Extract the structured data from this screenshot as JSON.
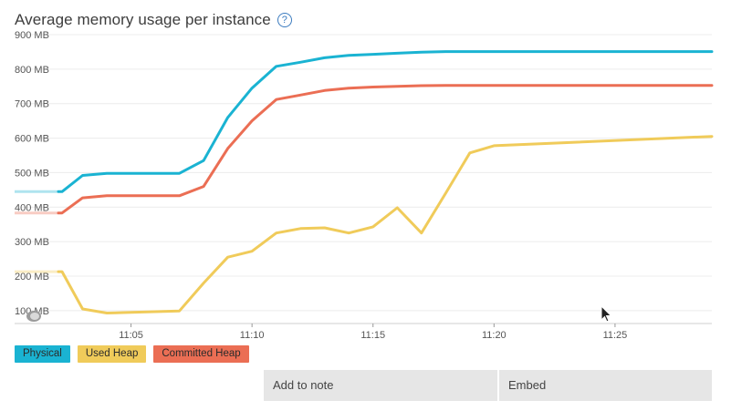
{
  "header": {
    "title": "Average memory usage per instance",
    "help_icon": "question-mark-icon",
    "help_glyph": "?"
  },
  "legend": [
    {
      "label": "Physical",
      "color": "#1ab3d2"
    },
    {
      "label": "Used Heap",
      "color": "#f0cb5a"
    },
    {
      "label": "Committed Heap",
      "color": "#eb6e54"
    }
  ],
  "actions": {
    "add_to_note": "Add to note",
    "embed": "Embed"
  },
  "chart_data": {
    "type": "line",
    "title": "Average memory usage per instance",
    "xlabel": "",
    "ylabel": "",
    "y_unit": "MB",
    "ylim": [
      60,
      900
    ],
    "y_ticks": [
      100,
      200,
      300,
      400,
      500,
      600,
      700,
      800,
      900
    ],
    "y_tick_labels": [
      "100 MB",
      "200 MB",
      "300 MB",
      "400 MB",
      "500 MB",
      "600 MB",
      "700 MB",
      "800 MB",
      "900 MB"
    ],
    "xlim": [
      "11:02",
      "11:29"
    ],
    "x_ticks": [
      "11:05",
      "11:10",
      "11:15",
      "11:20",
      "11:25"
    ],
    "grid": true,
    "legend_position": "bottom-left",
    "series": [
      {
        "name": "Physical",
        "color": "#1ab3d2",
        "x": [
          "11:02",
          "11:02",
          "11:03",
          "11:04",
          "11:05",
          "11:06",
          "11:07",
          "11:08",
          "11:09",
          "11:10",
          "11:11",
          "11:12",
          "11:13",
          "11:14",
          "11:15",
          "11:16",
          "11:17",
          "11:18",
          "11:19",
          "11:20",
          "11:21",
          "11:22",
          "11:23",
          "11:24",
          "11:25",
          "11:26",
          "11:27",
          "11:28",
          "11:29"
        ],
        "values": [
          445,
          445,
          492,
          498,
          498,
          498,
          498,
          535,
          660,
          745,
          808,
          820,
          833,
          840,
          843,
          846,
          849,
          851,
          851,
          851,
          851,
          851,
          851,
          851,
          851,
          851,
          851,
          851,
          851
        ]
      },
      {
        "name": "Used Heap",
        "color": "#f0cb5a",
        "x": [
          "11:02",
          "11:02",
          "11:03",
          "11:04",
          "11:05",
          "11:06",
          "11:07",
          "11:08",
          "11:09",
          "11:10",
          "11:11",
          "11:12",
          "11:13",
          "11:14",
          "11:15",
          "11:16",
          "11:17",
          "11:18",
          "11:19",
          "11:20",
          "11:29"
        ],
        "values": [
          213,
          213,
          105,
          93,
          95,
          97,
          99,
          180,
          255,
          272,
          325,
          338,
          340,
          325,
          343,
          398,
          325,
          440,
          557,
          578,
          605
        ]
      },
      {
        "name": "Committed Heap",
        "color": "#eb6e54",
        "x": [
          "11:02",
          "11:02",
          "11:03",
          "11:04",
          "11:05",
          "11:06",
          "11:07",
          "11:08",
          "11:09",
          "11:10",
          "11:11",
          "11:12",
          "11:13",
          "11:14",
          "11:15",
          "11:16",
          "11:17",
          "11:18",
          "11:19",
          "11:20",
          "11:29"
        ],
        "values": [
          383,
          383,
          427,
          433,
          433,
          433,
          433,
          460,
          570,
          650,
          712,
          725,
          738,
          745,
          748,
          750,
          752,
          753,
          753,
          753,
          753
        ]
      }
    ]
  }
}
